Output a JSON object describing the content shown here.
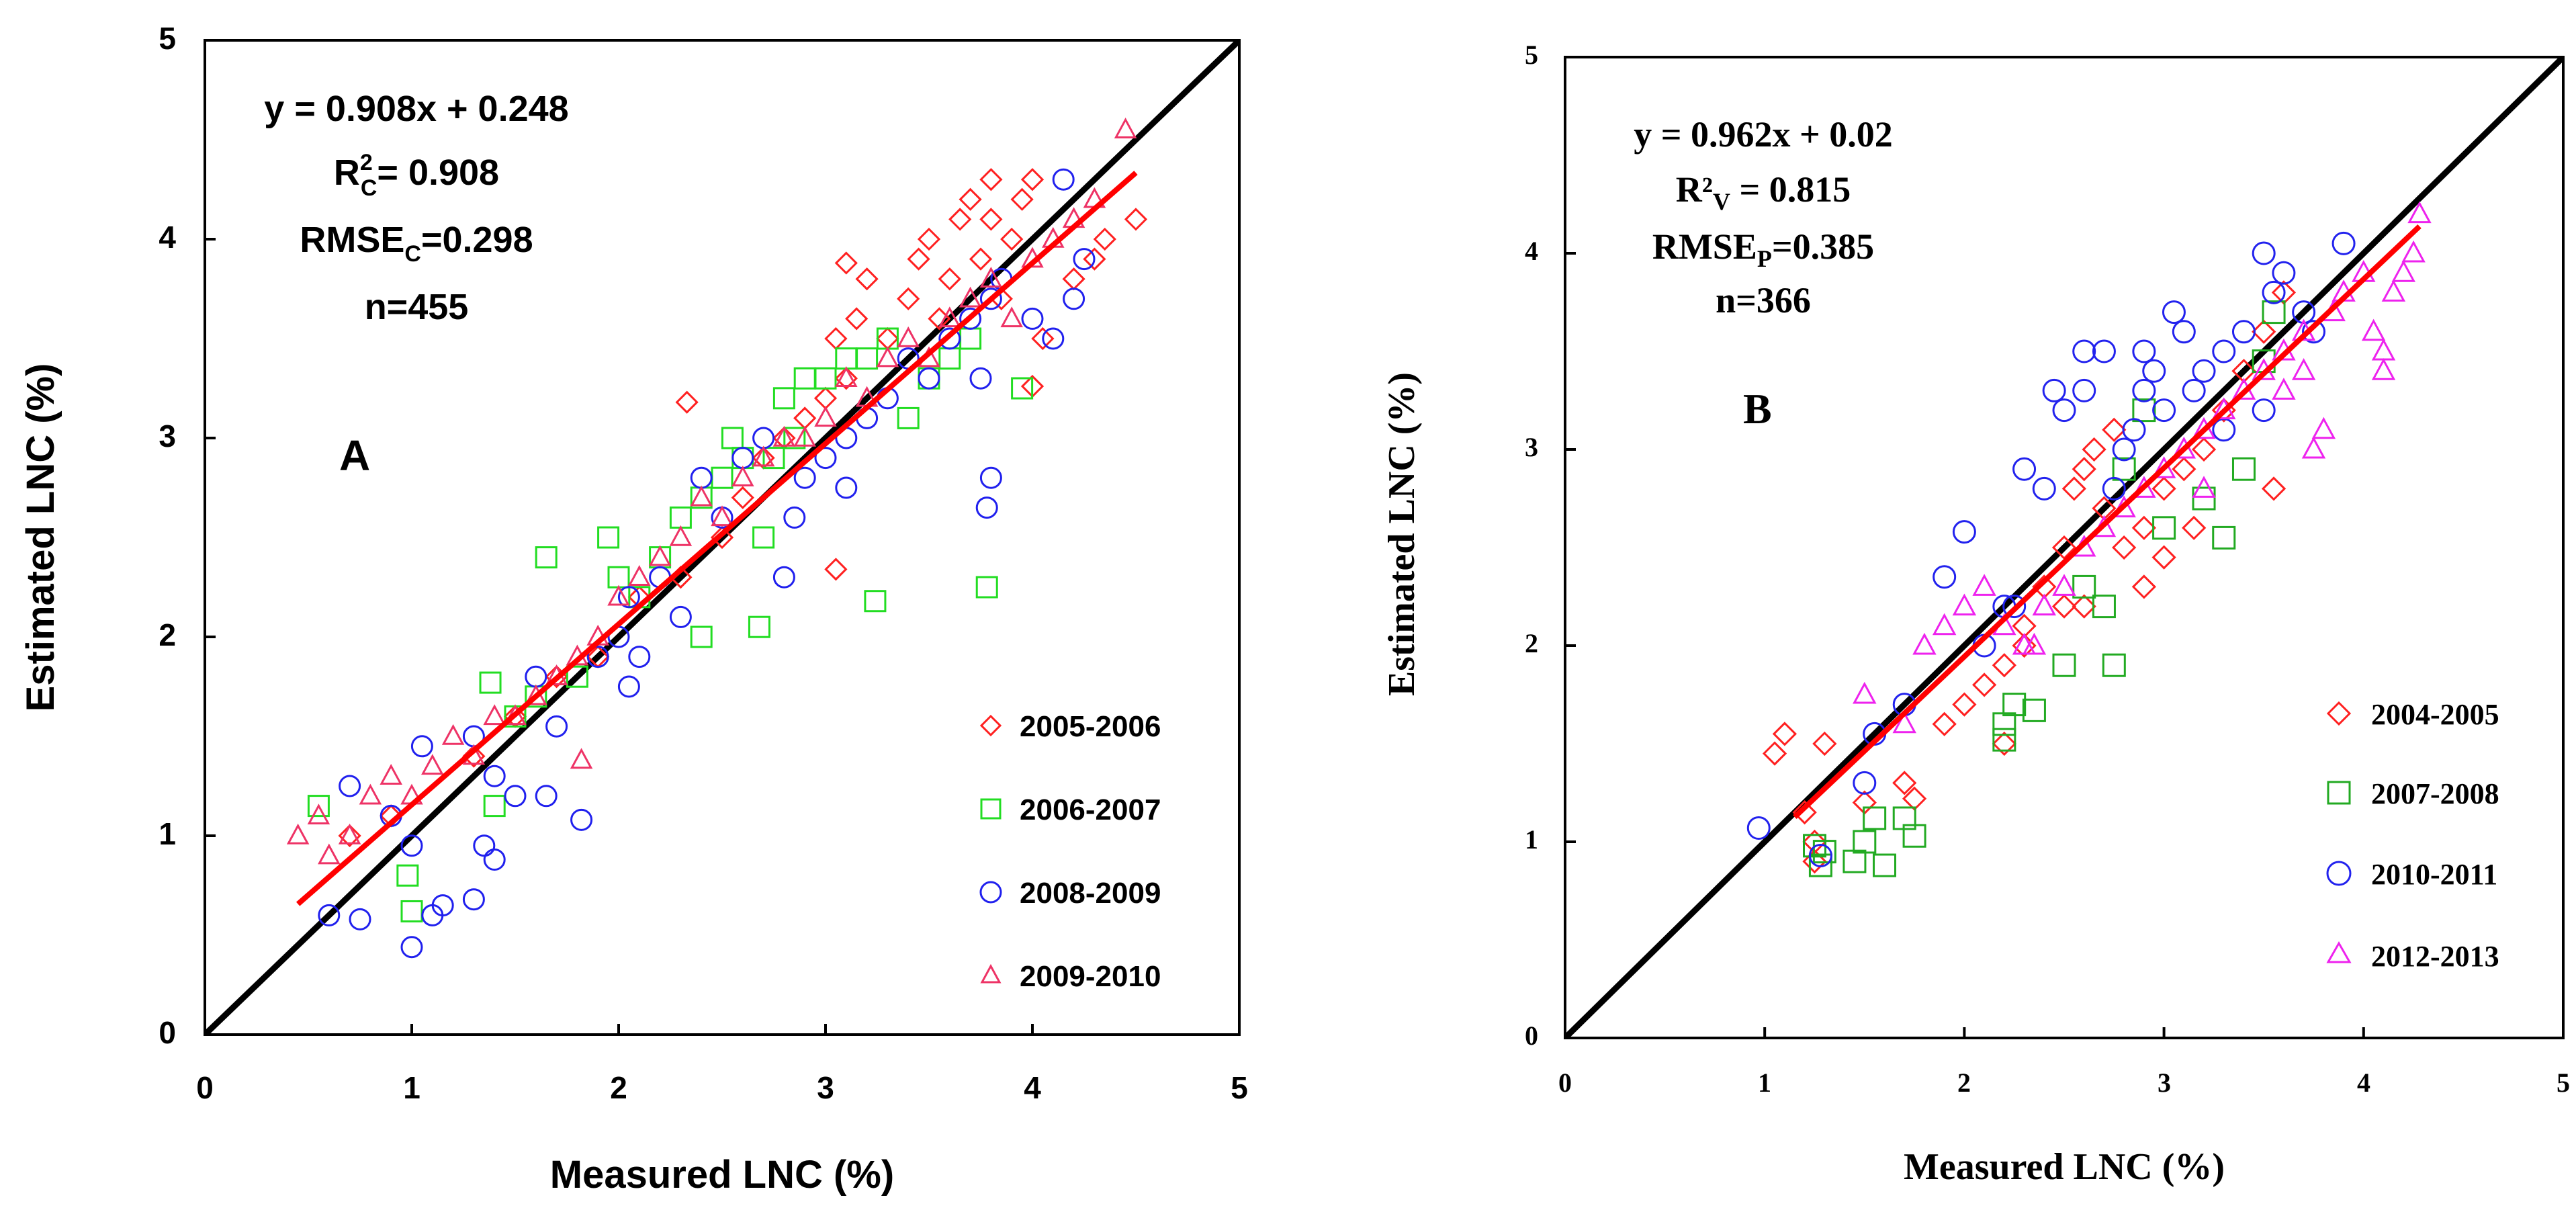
{
  "chart_data": [
    {
      "type": "scatter",
      "panel_label": "A",
      "title": "",
      "xlabel": "Measured LNC (%)",
      "ylabel": "Estimated LNC (%)",
      "xlim": [
        0,
        5
      ],
      "ylim": [
        0,
        5
      ],
      "xticks": [
        "0",
        "1",
        "2",
        "3",
        "4",
        "5"
      ],
      "yticks": [
        "0",
        "1",
        "2",
        "3",
        "4",
        "5"
      ],
      "grid": false,
      "legend_position": "bottom-right",
      "annotation": {
        "equation": "y = 0.908x + 0.248",
        "r2": "R²C= 0.908",
        "r2_main": "R",
        "r2_sup": "2",
        "r2_sub": "C",
        "r2_value": "= 0.908",
        "rmse_main": "RMSE",
        "rmse_sub": "C",
        "rmse_value": "=0.298",
        "n": "n=455"
      },
      "one_to_one_line": {
        "x": [
          0,
          5
        ],
        "y": [
          0,
          5
        ],
        "color": "#000000"
      },
      "fit_line": {
        "slope": 0.908,
        "intercept": 0.248,
        "x_range": [
          0.45,
          4.5
        ],
        "color": "#ff0000"
      },
      "series": [
        {
          "name": "2005-2006",
          "marker": "diamond",
          "color": "#ff2020",
          "x": [
            0.7,
            0.9,
            1.3,
            1.5,
            1.7,
            1.9,
            2.1,
            2.3,
            2.5,
            2.6,
            2.7,
            2.8,
            2.9,
            3.0,
            3.05,
            3.1,
            3.15,
            3.2,
            3.3,
            3.4,
            3.45,
            3.5,
            3.55,
            3.6,
            3.65,
            3.7,
            3.75,
            3.8,
            3.85,
            3.9,
            3.95,
            4.0,
            4.05,
            4.2,
            4.3,
            4.35,
            4.5,
            2.33,
            3.05,
            3.1,
            4.0,
            3.8
          ],
          "y": [
            1.0,
            1.1,
            1.4,
            1.6,
            1.8,
            1.9,
            2.2,
            2.3,
            2.5,
            2.7,
            2.9,
            3.0,
            3.1,
            3.2,
            3.5,
            3.3,
            3.6,
            3.8,
            3.5,
            3.7,
            3.9,
            4.0,
            3.6,
            3.8,
            4.1,
            4.2,
            3.9,
            4.1,
            3.7,
            4.0,
            4.2,
            4.3,
            3.5,
            3.8,
            3.9,
            4.0,
            4.1,
            3.18,
            2.34,
            3.88,
            3.26,
            4.3
          ]
        },
        {
          "name": "2006-2007",
          "marker": "square",
          "color": "#22dd22",
          "x": [
            0.55,
            0.98,
            1.0,
            1.38,
            1.4,
            1.5,
            1.6,
            1.65,
            1.8,
            1.95,
            2.0,
            2.1,
            2.2,
            2.3,
            2.4,
            2.5,
            2.55,
            2.6,
            2.7,
            2.75,
            2.8,
            2.85,
            2.9,
            3.0,
            3.1,
            3.2,
            3.24,
            3.3,
            3.4,
            3.5,
            3.6,
            3.7,
            3.78,
            3.95,
            2.68,
            2.4
          ],
          "y": [
            1.15,
            0.8,
            0.62,
            1.77,
            1.15,
            1.6,
            1.7,
            2.4,
            1.8,
            2.5,
            2.3,
            2.2,
            2.4,
            2.6,
            2.7,
            2.8,
            3.0,
            2.9,
            2.5,
            2.9,
            3.2,
            3.0,
            3.3,
            3.3,
            3.4,
            3.4,
            2.18,
            3.5,
            3.1,
            3.3,
            3.4,
            3.5,
            2.25,
            3.25,
            2.05,
            2.0
          ]
        },
        {
          "name": "2008-2009",
          "marker": "circle",
          "color": "#2020ee",
          "x": [
            0.6,
            0.7,
            0.75,
            0.9,
            1.0,
            1.05,
            1.1,
            1.15,
            1.3,
            1.35,
            1.4,
            1.5,
            1.6,
            1.7,
            1.82,
            1.9,
            2.0,
            2.1,
            2.2,
            2.3,
            2.4,
            2.5,
            2.6,
            2.7,
            2.8,
            2.85,
            2.9,
            3.0,
            3.1,
            3.2,
            3.3,
            3.4,
            3.5,
            3.6,
            3.7,
            3.75,
            3.8,
            3.85,
            4.0,
            4.1,
            4.15,
            4.2,
            4.25,
            1.0,
            1.3,
            1.4,
            1.65,
            2.05,
            3.78,
            3.8,
            3.1,
            2.05
          ],
          "y": [
            0.6,
            1.25,
            0.58,
            1.1,
            0.95,
            1.45,
            0.6,
            0.65,
            0.68,
            0.95,
            0.88,
            1.2,
            1.8,
            1.55,
            1.08,
            1.9,
            2.0,
            1.9,
            2.3,
            2.1,
            2.8,
            2.6,
            2.9,
            3.0,
            2.3,
            2.6,
            2.8,
            2.9,
            3.0,
            3.1,
            3.2,
            3.4,
            3.3,
            3.5,
            3.6,
            3.3,
            3.7,
            3.8,
            3.6,
            3.5,
            4.3,
            3.7,
            3.9,
            0.44,
            1.5,
            1.3,
            1.2,
            1.75,
            2.65,
            2.8,
            2.75,
            2.2
          ]
        },
        {
          "name": "2009-2010",
          "marker": "triangle",
          "color": "#ee3366",
          "x": [
            0.45,
            0.55,
            0.6,
            0.7,
            0.8,
            0.9,
            1.0,
            1.1,
            1.2,
            1.3,
            1.4,
            1.5,
            1.6,
            1.7,
            1.8,
            1.9,
            2.0,
            2.1,
            2.2,
            2.3,
            2.4,
            2.5,
            2.6,
            2.7,
            2.8,
            2.9,
            3.0,
            3.1,
            3.2,
            3.3,
            3.4,
            3.5,
            3.6,
            3.7,
            3.8,
            3.9,
            4.0,
            4.1,
            4.2,
            4.3,
            4.45,
            1.82
          ],
          "y": [
            1.0,
            1.1,
            0.9,
            1.0,
            1.2,
            1.3,
            1.2,
            1.35,
            1.5,
            1.4,
            1.6,
            1.6,
            1.7,
            1.8,
            1.9,
            2.0,
            2.2,
            2.3,
            2.4,
            2.5,
            2.7,
            2.6,
            2.8,
            2.9,
            3.0,
            3.0,
            3.1,
            3.3,
            3.2,
            3.4,
            3.5,
            3.4,
            3.6,
            3.7,
            3.8,
            3.6,
            3.9,
            4.0,
            4.1,
            4.2,
            4.55,
            1.38
          ]
        }
      ]
    },
    {
      "type": "scatter",
      "panel_label": "B",
      "title": "",
      "xlabel": "Measured LNC (%)",
      "ylabel": "Estimated LNC (%)",
      "xlim": [
        0,
        5
      ],
      "ylim": [
        0,
        5
      ],
      "xticks": [
        "0",
        "1",
        "2",
        "3",
        "4",
        "5"
      ],
      "yticks": [
        "0",
        "1",
        "2",
        "3",
        "4",
        "5"
      ],
      "grid": false,
      "legend_position": "bottom-right",
      "annotation": {
        "equation": "y = 0.962x + 0.02",
        "r2_main": "R²",
        "r2_sub": "V",
        "r2_value": " = 0.815",
        "rmse_main": "RMSE",
        "rmse_sub": "P",
        "rmse_value": "=0.385",
        "n": "n=366"
      },
      "one_to_one_line": {
        "x": [
          0,
          5
        ],
        "y": [
          0,
          5
        ],
        "color": "#000000"
      },
      "fit_line": {
        "slope": 0.962,
        "intercept": 0.02,
        "x_range": [
          1.15,
          4.28
        ],
        "color": "#ff0000"
      },
      "series": [
        {
          "name": "2004-2005",
          "marker": "diamond",
          "color": "#ff2020",
          "x": [
            1.05,
            1.1,
            1.2,
            1.25,
            1.3,
            1.5,
            1.7,
            1.9,
            2.0,
            2.1,
            2.2,
            2.3,
            2.4,
            2.5,
            2.55,
            2.6,
            2.65,
            2.7,
            2.8,
            2.9,
            3.0,
            3.1,
            3.2,
            3.3,
            3.4,
            3.5,
            3.6,
            2.3,
            2.5,
            2.75,
            2.9,
            3.15,
            3.55,
            1.25,
            1.75,
            2.2,
            2.6,
            3.0
          ],
          "y": [
            1.45,
            1.55,
            1.15,
            1.0,
            1.5,
            1.2,
            1.3,
            1.6,
            1.7,
            1.8,
            1.9,
            2.1,
            2.3,
            2.5,
            2.8,
            2.9,
            3.0,
            2.7,
            2.5,
            2.6,
            2.8,
            2.9,
            3.0,
            3.2,
            3.4,
            3.6,
            3.8,
            2.0,
            2.2,
            3.1,
            2.3,
            2.6,
            2.8,
            0.9,
            1.22,
            1.5,
            2.2,
            2.45
          ]
        },
        {
          "name": "2007-2008",
          "marker": "square",
          "color": "#22aa22",
          "x": [
            1.28,
            1.3,
            1.45,
            1.5,
            1.55,
            1.6,
            1.7,
            1.75,
            2.2,
            2.2,
            2.25,
            2.35,
            2.5,
            2.6,
            2.7,
            2.75,
            2.8,
            2.9,
            3.0,
            3.2,
            3.3,
            3.4,
            3.5,
            3.55,
            1.25
          ],
          "y": [
            0.88,
            0.95,
            0.9,
            1.0,
            1.12,
            0.88,
            1.12,
            1.03,
            1.52,
            1.6,
            1.7,
            1.67,
            1.9,
            2.3,
            2.2,
            1.9,
            2.9,
            3.2,
            2.6,
            2.75,
            2.55,
            2.9,
            3.45,
            3.7,
            0.98
          ]
        },
        {
          "name": "2010-2011",
          "marker": "circle",
          "color": "#2222ee",
          "x": [
            0.97,
            1.28,
            1.5,
            1.55,
            1.7,
            1.9,
            2.0,
            2.1,
            2.2,
            2.3,
            2.4,
            2.5,
            2.6,
            2.7,
            2.75,
            2.8,
            2.85,
            2.9,
            2.95,
            3.0,
            3.05,
            3.1,
            3.15,
            3.2,
            3.3,
            3.4,
            3.5,
            3.55,
            3.6,
            3.7,
            3.75,
            3.9,
            2.25,
            2.45,
            2.6,
            2.9,
            3.3,
            3.5
          ],
          "y": [
            1.07,
            0.93,
            1.3,
            1.55,
            1.7,
            2.35,
            2.58,
            2.0,
            2.2,
            2.9,
            2.8,
            3.2,
            3.3,
            3.5,
            2.8,
            3.0,
            3.1,
            3.3,
            3.4,
            3.2,
            3.7,
            3.6,
            3.3,
            3.4,
            3.5,
            3.6,
            4.0,
            3.8,
            3.9,
            3.7,
            3.6,
            4.05,
            2.2,
            3.3,
            3.5,
            3.5,
            3.1,
            3.2
          ]
        },
        {
          "name": "2012-2013",
          "marker": "triangle",
          "color": "#ee22ee",
          "x": [
            1.5,
            1.7,
            1.8,
            1.9,
            2.0,
            2.1,
            2.2,
            2.3,
            2.4,
            2.5,
            2.6,
            2.7,
            2.8,
            2.9,
            3.0,
            3.1,
            3.2,
            3.3,
            3.4,
            3.5,
            3.6,
            3.7,
            3.75,
            3.8,
            3.85,
            3.9,
            4.0,
            4.05,
            4.1,
            4.15,
            4.2,
            4.25,
            4.28,
            3.6,
            3.7,
            4.1,
            2.35,
            3.2
          ],
          "y": [
            1.75,
            1.6,
            2.0,
            2.1,
            2.2,
            2.3,
            2.1,
            2.0,
            2.2,
            2.3,
            2.5,
            2.6,
            2.7,
            2.8,
            2.9,
            3.0,
            3.1,
            3.2,
            3.3,
            3.4,
            3.5,
            3.6,
            3.0,
            3.1,
            3.7,
            3.8,
            3.9,
            3.6,
            3.5,
            3.8,
            3.9,
            4.0,
            4.2,
            3.3,
            3.4,
            3.4,
            2.0,
            2.8
          ]
        }
      ]
    }
  ]
}
